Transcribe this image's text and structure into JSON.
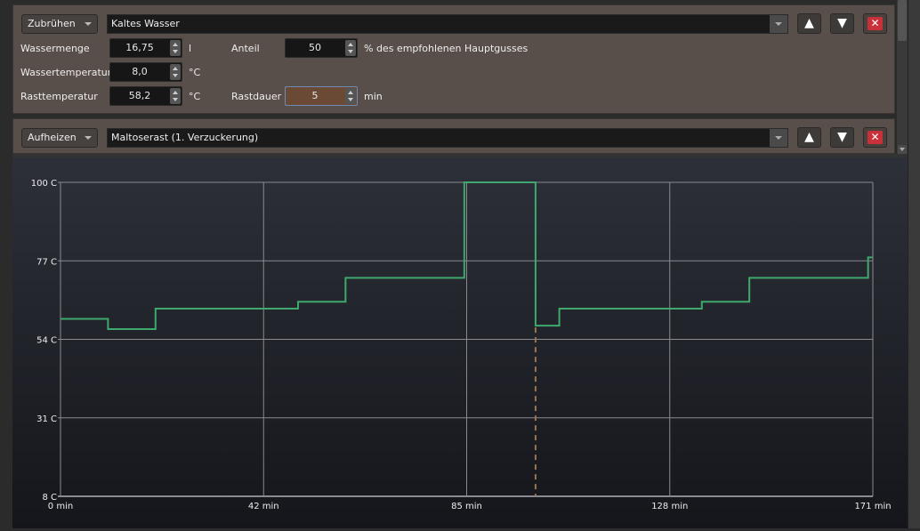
{
  "step1": {
    "type_select": "Zubrühen",
    "name": "Kaltes Wasser",
    "fields": {
      "wassermenge": {
        "label": "Wassermenge",
        "value": "16,75",
        "unit": "l"
      },
      "wassertemperatur": {
        "label": "Wassertemperatur",
        "value": "8,0",
        "unit": "°C"
      },
      "rasttemperatur": {
        "label": "Rasttemperatur",
        "value": "58,2",
        "unit": "°C"
      },
      "anteil": {
        "label": "Anteil",
        "value": "50",
        "unit": "% des empfohlenen Hauptgusses"
      },
      "rastdauer": {
        "label": "Rastdauer",
        "value": "5",
        "unit": "min"
      }
    }
  },
  "step2": {
    "type_select": "Aufheizen",
    "name": "Maltoserast (1. Verzuckerung)"
  },
  "buttons": {
    "up": "▲",
    "down": "▼",
    "delete": "✕"
  },
  "colors": {
    "line": "#3fa86e",
    "marker": "#9a7550",
    "grid": "#8a8a90",
    "delete": "#c8313a"
  },
  "chart_data": {
    "type": "line",
    "step": true,
    "x_ticks": [
      "0 min",
      "42 min",
      "85 min",
      "128 min",
      "171 min"
    ],
    "y_ticks": [
      "100 C",
      "77 C",
      "54 C",
      "31 C",
      "8 C"
    ],
    "xlim": [
      0,
      171
    ],
    "ylim": [
      8,
      100
    ],
    "grid": true,
    "series": [
      {
        "x": [
          0,
          10,
          20,
          50,
          60,
          85,
          100,
          105,
          135,
          145,
          170,
          171
        ],
        "y": [
          60,
          57,
          63,
          65,
          72,
          100,
          58,
          63,
          65,
          72,
          78,
          78
        ]
      }
    ],
    "marker_x": 100
  }
}
